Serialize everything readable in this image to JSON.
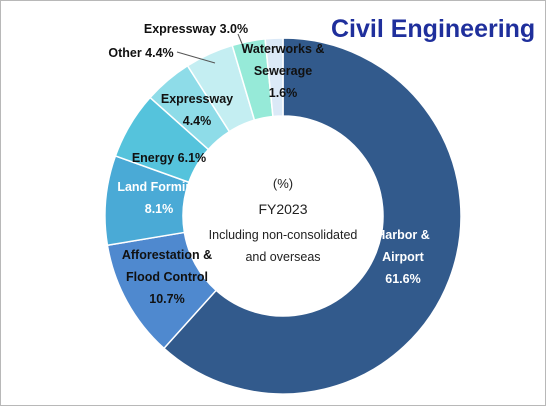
{
  "title": "Civil Engineering",
  "center_text": {
    "unit": "(%)",
    "year": "FY2023",
    "note_line1": "Including non-consolidated",
    "note_line2": "and overseas"
  },
  "chart_data": {
    "type": "pie",
    "donut": true,
    "title": "Civil Engineering",
    "slices": [
      {
        "label": "Harbor & Airport",
        "label_lines": [
          "Harbor &",
          "Airport"
        ],
        "value": 61.6,
        "value_text": "61.6%",
        "color": "#325a8c"
      },
      {
        "label": "Afforestation & Flood Control",
        "label_lines": [
          "Afforestation &",
          "Flood Control"
        ],
        "value": 10.7,
        "value_text": "10.7%",
        "color": "#4f89cf"
      },
      {
        "label": "Land Forming",
        "label_lines": [
          "Land Forming"
        ],
        "value": 8.1,
        "value_text": "8.1%",
        "color": "#4aaad6"
      },
      {
        "label": "Energy",
        "label_lines": [
          "Energy 6.1%"
        ],
        "value": 6.1,
        "value_text": "",
        "color": "#55c3dc"
      },
      {
        "label": "Expressway",
        "label_lines": [
          "Expressway"
        ],
        "value": 4.4,
        "value_text": "4.4%",
        "color": "#8edce8"
      },
      {
        "label": "Other",
        "label_lines": [
          "Other 4.4%"
        ],
        "value": 4.4,
        "value_text": "",
        "color": "#c4eef2"
      },
      {
        "label": "Expressway",
        "label_lines": [
          "Expressway 3.0%"
        ],
        "value": 3.0,
        "value_text": "",
        "color": "#96ead8"
      },
      {
        "label": "Waterworks & Sewerage",
        "label_lines": [
          "Waterworks &",
          "Sewerage"
        ],
        "value": 1.6,
        "value_text": "1.6%",
        "color": "#dbe9f7"
      }
    ]
  }
}
